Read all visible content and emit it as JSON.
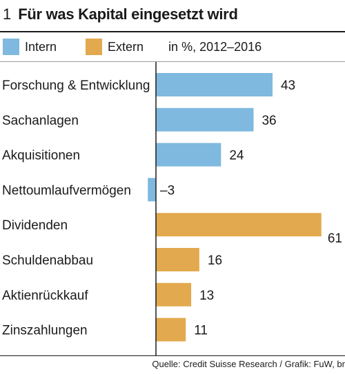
{
  "header": {
    "number": "1",
    "title": "Für was Kapital eingesetzt wird"
  },
  "legend": {
    "items": [
      {
        "label": "Intern",
        "color": "#7fb9df"
      },
      {
        "label": "Extern",
        "color": "#e2a94e"
      }
    ],
    "unit_note": "in %, 2012–2016"
  },
  "chart_data": {
    "type": "bar",
    "orientation": "horizontal",
    "title": "Für was Kapital eingesetzt wird",
    "unit": "in %, 2012–2016",
    "categories": [
      "Forschung & Entwicklung",
      "Sachanlagen",
      "Akquisitionen",
      "Nettoumlaufvermögen",
      "Dividenden",
      "Schuldenabbau",
      "Aktienrückkauf",
      "Zinszahlungen"
    ],
    "values": [
      43,
      36,
      24,
      -3,
      61,
      16,
      13,
      11
    ],
    "value_labels": [
      "43",
      "36",
      "24",
      "–3",
      "61",
      "16",
      "13",
      "11"
    ],
    "groups": [
      "Intern",
      "Intern",
      "Intern",
      "Intern",
      "Extern",
      "Extern",
      "Extern",
      "Extern"
    ],
    "series_colors": {
      "Intern": "#7fb9df",
      "Extern": "#e2a94e"
    },
    "xlim": [
      -4,
      65
    ],
    "grid": false,
    "legend_position": "top"
  },
  "footer": {
    "source": "Quelle: Credit Suisse Research / Grafik: FuW, br"
  }
}
